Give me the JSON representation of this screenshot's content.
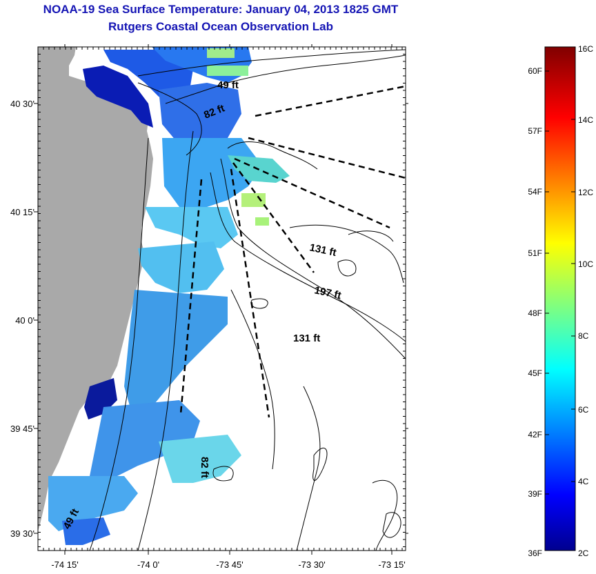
{
  "header": {
    "title": "NOAA-19 Sea Surface Temperature:  January 04, 2013 1825 GMT",
    "subtitle": "Rutgers Coastal Ocean Observation Lab"
  },
  "map": {
    "lat_labels": [
      "40 30'",
      "40 15'",
      "40 0'",
      "39 45'",
      "39 30'"
    ],
    "lon_labels": [
      "-74 15'",
      "-74 0'",
      "-73 45'",
      "-73 30'",
      "-73 15'"
    ],
    "depth_labels": [
      "49 ft",
      "82 ft",
      "131 ft",
      "197 ft",
      "131 ft",
      "82 ft",
      "49 ft"
    ],
    "colors": {
      "land": "#a9a9a9",
      "contour": "#000000"
    }
  },
  "colorbar": {
    "celsius_labels": [
      "16C",
      "14C",
      "12C",
      "10C",
      "8C",
      "6C",
      "4C",
      "2C"
    ],
    "fahrenheit_labels": [
      "60F",
      "57F",
      "54F",
      "51F",
      "48F",
      "45F",
      "42F",
      "39F",
      "36F"
    ],
    "colormap": "jet"
  }
}
